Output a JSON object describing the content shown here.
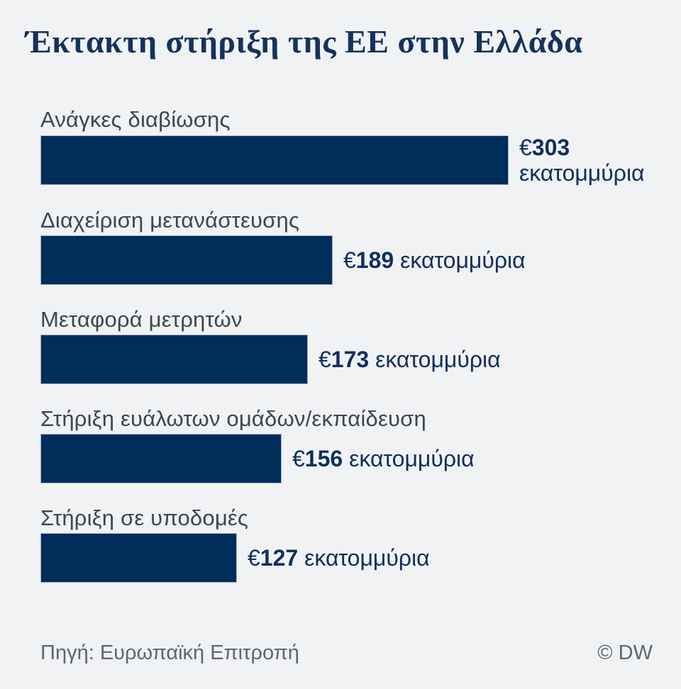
{
  "title": "Έκτακτη στήριξη της ΕΕ στην Ελλάδα",
  "footer": {
    "source": "Πηγή: Ευρωπαϊκή Επιτροπή",
    "copyright": "© DW"
  },
  "chart_data": {
    "type": "bar",
    "orientation": "horizontal",
    "title": "Έκτακτη στήριξη της ΕΕ στην Ελλάδα",
    "categories": [
      "Ανάγκες διαβίωσης",
      "Διαχείριση μετανάστευσης",
      "Μεταφορά μετρητών",
      "Στήριξη ευάλωτων ομάδων/εκπαίδευση",
      "Στήριξη σε υποδομές"
    ],
    "values": [
      303,
      189,
      173,
      156,
      127
    ],
    "currency_symbol": "€",
    "unit": "εκατομμύρια",
    "value_labels": [
      "€303 εκατομμύρια",
      "€189 εκατομμύρια",
      "€173 εκατομμύρια",
      "€156 εκατομμύρια",
      "€127 εκατομμύρια"
    ],
    "xlim": [
      0,
      303
    ],
    "grid": false,
    "legend": false,
    "axis_ticks": false
  },
  "colors": {
    "background": "#f1f2f4",
    "bar_fill": "#002d5a",
    "title_text": "#16325c",
    "category_text": "#3d4652",
    "value_text": "#0f2f5c",
    "footer_text": "#5d6770"
  }
}
